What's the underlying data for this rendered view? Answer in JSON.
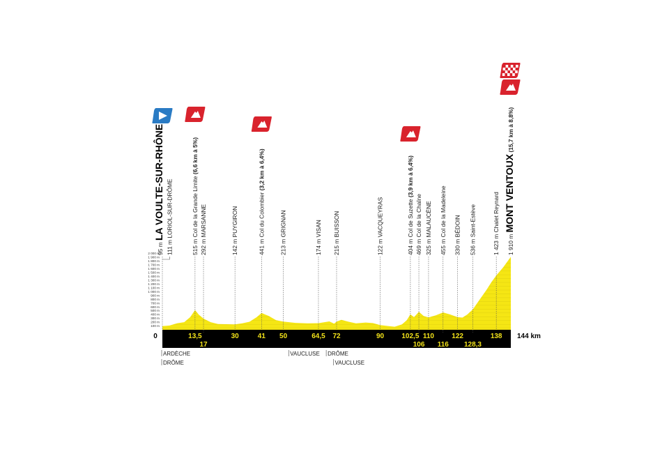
{
  "chart_data": {
    "type": "area",
    "title": "",
    "xlabel": "",
    "ylabel": "",
    "xlim": [
      0,
      144
    ],
    "ylim": [
      0,
      2000
    ],
    "x_unit_label": "144 km",
    "x_origin_label": "0",
    "y_ticks": [
      "2 000 m",
      "1 900 m",
      "1 800 m",
      "1 700 m",
      "1 600 m",
      "1 500 m",
      "1 400 m",
      "1 300 m",
      "1 200 m",
      "1 100 m",
      "1 000 m",
      "900 m",
      "800 m",
      "700 m",
      "600 m",
      "500 m",
      "400 m",
      "300 m",
      "200 m",
      "100 m"
    ],
    "profile": [
      [
        0,
        95
      ],
      [
        3,
        111
      ],
      [
        6,
        170
      ],
      [
        9,
        200
      ],
      [
        11.5,
        330
      ],
      [
        13.5,
        515
      ],
      [
        15,
        400
      ],
      [
        17,
        292
      ],
      [
        20,
        200
      ],
      [
        23,
        150
      ],
      [
        30,
        142
      ],
      [
        33,
        170
      ],
      [
        36,
        210
      ],
      [
        39,
        330
      ],
      [
        41,
        441
      ],
      [
        44,
        360
      ],
      [
        47,
        250
      ],
      [
        50,
        213
      ],
      [
        55,
        180
      ],
      [
        60,
        170
      ],
      [
        64.5,
        174
      ],
      [
        67,
        200
      ],
      [
        69,
        220
      ],
      [
        71,
        160
      ],
      [
        72,
        215
      ],
      [
        74,
        260
      ],
      [
        77,
        210
      ],
      [
        80,
        170
      ],
      [
        84,
        190
      ],
      [
        87,
        175
      ],
      [
        90,
        122
      ],
      [
        93,
        100
      ],
      [
        96,
        80
      ],
      [
        99,
        140
      ],
      [
        101,
        250
      ],
      [
        102.5,
        404
      ],
      [
        104,
        330
      ],
      [
        106,
        469
      ],
      [
        108,
        360
      ],
      [
        110,
        325
      ],
      [
        113,
        380
      ],
      [
        116,
        455
      ],
      [
        119,
        400
      ],
      [
        122,
        330
      ],
      [
        124,
        320
      ],
      [
        126,
        400
      ],
      [
        128.3,
        536
      ],
      [
        131,
        780
      ],
      [
        134,
        1050
      ],
      [
        136,
        1250
      ],
      [
        138,
        1423
      ],
      [
        141,
        1650
      ],
      [
        144,
        1910
      ]
    ],
    "fill_color": "#f5e614",
    "bar_color": "#000000",
    "start": {
      "km": 0,
      "alt": "95 m",
      "name": "LA VOULTE-SUR-RHÔNE",
      "icon": "start-flag-icon",
      "color": "#2a7bc4"
    },
    "finish": {
      "km": 144,
      "alt": "1 910 m",
      "name": "MONT VENTOUX",
      "climb": "(15,7 km à 8,8%)",
      "icons": [
        "finish-checkered-icon",
        "mountain-climb-icon"
      ],
      "color": "#d9232d"
    },
    "waypoints": [
      {
        "km": 3,
        "alt": "111 m",
        "name": "LORIOL-SUR-DRÔME"
      },
      {
        "km": 13.5,
        "alt": "515 m",
        "name": "Col de la Grande Limite",
        "climb": "(6,6 km à 5%)",
        "kom": true
      },
      {
        "km": 17,
        "alt": "292 m",
        "name": "MARSANNE"
      },
      {
        "km": 30,
        "alt": "142 m",
        "name": "PUYGIRON"
      },
      {
        "km": 41,
        "alt": "441 m",
        "name": "Col du Colombier",
        "climb": "(3,2 km à 6,4%)",
        "kom": true
      },
      {
        "km": 50,
        "alt": "213 m",
        "name": "GRIGNAN"
      },
      {
        "km": 64.5,
        "alt": "174 m",
        "name": "VISAN"
      },
      {
        "km": 72,
        "alt": "215 m",
        "name": "BUISSON"
      },
      {
        "km": 90,
        "alt": "122 m",
        "name": "VACQUEYRAS"
      },
      {
        "km": 102.5,
        "alt": "404 m",
        "name": "Col de Suzette",
        "climb": "(3,9 km à 6,4%)",
        "kom": true
      },
      {
        "km": 106,
        "alt": "469 m",
        "name": "Col de la Chaîne"
      },
      {
        "km": 110,
        "alt": "325 m",
        "name": "MALAUCÈNE"
      },
      {
        "km": 116,
        "alt": "455 m",
        "name": "Col de la Madeleine"
      },
      {
        "km": 122,
        "alt": "330 m",
        "name": "BÉDOIN"
      },
      {
        "km": 128.3,
        "alt": "536 m",
        "name": "Saint-Estève"
      },
      {
        "km": 138,
        "alt": "1 423 m",
        "name": "Chalet Reynard"
      }
    ],
    "km_labels_row1": [
      [
        "13,5",
        13.5
      ],
      [
        "30",
        30
      ],
      [
        "41",
        41
      ],
      [
        "50",
        50
      ],
      [
        "64,5",
        64.5
      ],
      [
        "72",
        72
      ],
      [
        "90",
        90
      ],
      [
        "102,5",
        102.5
      ],
      [
        "110",
        110
      ],
      [
        "122",
        122
      ],
      [
        "138",
        138
      ]
    ],
    "km_labels_row2": [
      [
        "17",
        17
      ],
      [
        "106",
        106
      ],
      [
        "116",
        116
      ],
      [
        "128,3",
        128.3
      ]
    ],
    "regions": [
      {
        "km": 0,
        "row": 1,
        "name": "ARDÈCHE"
      },
      {
        "km": 0,
        "row": 2,
        "name": "DRÔME"
      },
      {
        "km": 52.5,
        "row": 1,
        "name": "VAUCLUSE"
      },
      {
        "km": 68,
        "row": 1,
        "name": "DRÔME"
      },
      {
        "km": 71,
        "row": 2,
        "name": "VAUCLUSE"
      }
    ]
  }
}
